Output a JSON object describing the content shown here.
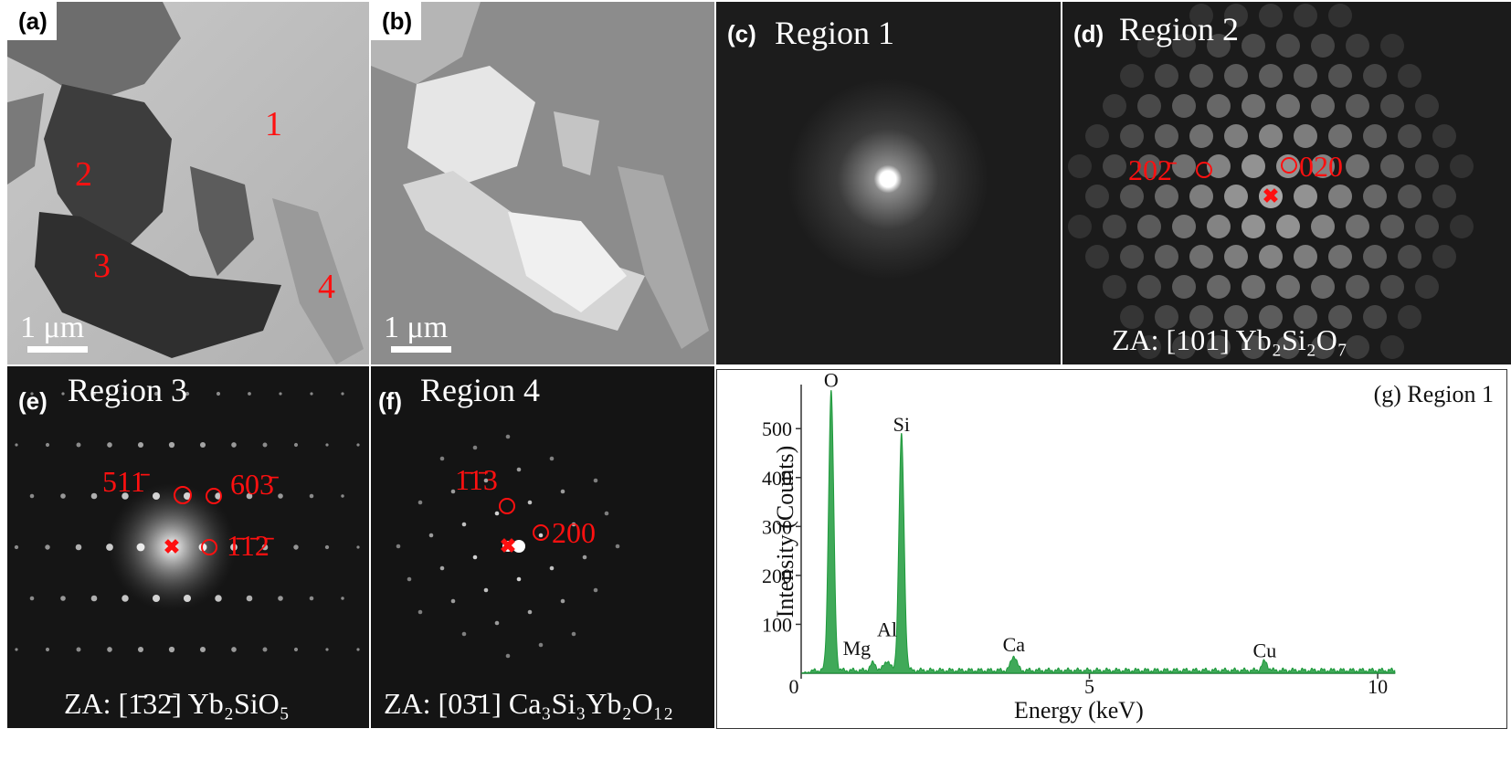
{
  "panels": {
    "a": {
      "tag": "(a)",
      "regions": [
        "1",
        "2",
        "3",
        "4"
      ],
      "scale": "1 μm"
    },
    "b": {
      "tag": "(b)",
      "scale": "1 μm"
    },
    "c": {
      "tag": "(c)",
      "title": "Region 1"
    },
    "d": {
      "tag": "(d)",
      "title": "Region 2",
      "idx_left": "202̄",
      "idx_right": "020",
      "za": "ZA: [101] Yb₂Si₂O₇"
    },
    "e": {
      "tag": "(e)",
      "title": "Region 3",
      "idx1": "511̄",
      "idx2": "603̄",
      "idx3": "1̄1̄2̄",
      "za": "ZA: [1̄32̄] Yb₂SiO₅"
    },
    "f": {
      "tag": "(f)",
      "title": "Region 4",
      "idx1": "1̄1̄3",
      "idx2": "200",
      "za": "ZA: [03̄1] Ca₃Si₃Yb₂O₁₂"
    }
  },
  "chart_data": {
    "type": "line",
    "title": "(g) Region 1",
    "xlabel": "Energy (keV)",
    "ylabel": "Intensity (Counts)",
    "xlim": [
      0,
      10.3
    ],
    "ylim": [
      0,
      590
    ],
    "xticks": [
      0,
      5,
      10
    ],
    "yticks": [
      100,
      200,
      300,
      400,
      500
    ],
    "line_color": "#1e9a3c",
    "peaks": [
      {
        "label": "O",
        "x": 0.52,
        "y": 570
      },
      {
        "label": "Mg",
        "x": 1.25,
        "y": 15
      },
      {
        "label": "Al",
        "x": 1.49,
        "y": 20
      },
      {
        "label": "Si",
        "x": 1.74,
        "y": 480
      },
      {
        "label": "Ca",
        "x": 3.69,
        "y": 30
      },
      {
        "label": "Cu",
        "x": 8.04,
        "y": 18
      }
    ]
  }
}
